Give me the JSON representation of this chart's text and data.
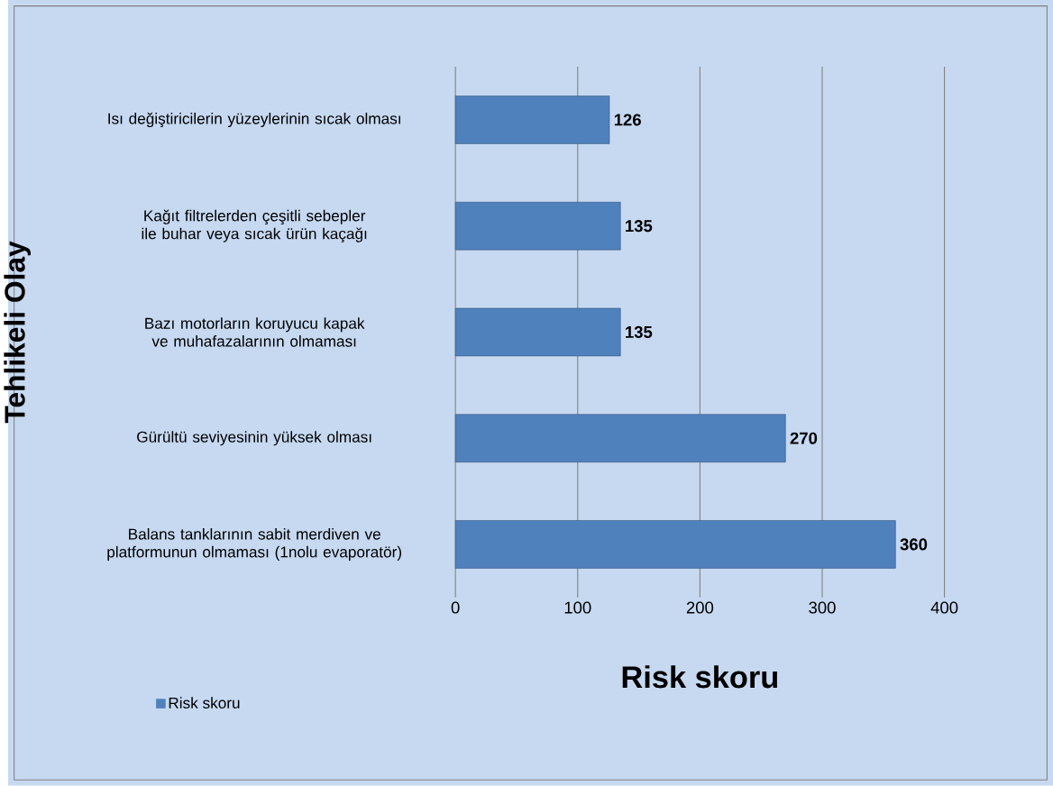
{
  "chart_data": {
    "type": "bar",
    "orientation": "horizontal",
    "xlabel": "Risk skoru",
    "ylabel": "Tehlikeli Olay",
    "categories": [
      "Isı değiştiricilerin yüzeylerinin sıcak olması",
      "Kağıt filtrelerden çeşitli sebepler ile buhar veya sıcak ürün kaçağı",
      "Bazı motorların koruyucu kapak ve muhafazalarının olmaması",
      "Gürültü seviyesinin yüksek olması",
      "Balans tanklarının sabit merdiven ve platformunun olmaması (1nolu evaporatör)"
    ],
    "series": [
      {
        "name": "Risk skoru",
        "color": "#4f81bd",
        "values": [
          126,
          135,
          135,
          270,
          360
        ]
      }
    ],
    "xlim": [
      0,
      400
    ],
    "xticks": [
      0,
      100,
      200,
      300,
      400
    ],
    "grid": "x",
    "data_labels": true,
    "legend": "bottom left"
  }
}
